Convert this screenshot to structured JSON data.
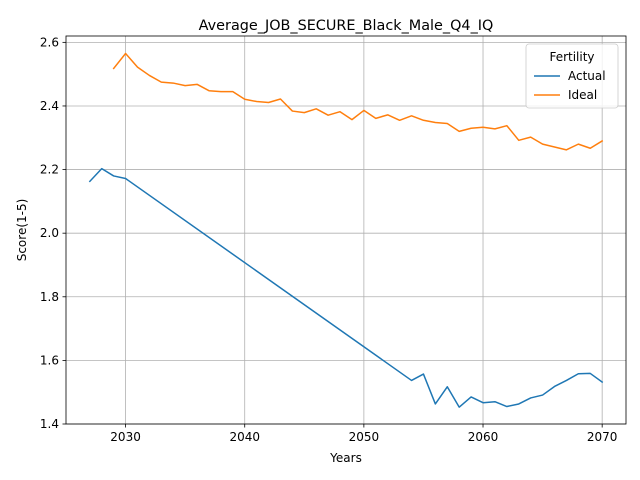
{
  "chart_data": {
    "type": "line",
    "title": "Average_JOB_SECURE_Black_Male_Q4_IQ",
    "xlabel": "Years",
    "ylabel": "Score(1-5)",
    "xlim": [
      2025,
      2072
    ],
    "ylim": [
      1.4,
      2.62
    ],
    "xticks": [
      2030,
      2040,
      2050,
      2060,
      2070
    ],
    "yticks": [
      1.4,
      1.6,
      1.8,
      2.0,
      2.2,
      2.4,
      2.6
    ],
    "grid": true,
    "legend": {
      "title": "Fertility",
      "location": "top-right"
    },
    "series": [
      {
        "name": "Actual",
        "color": "#1f77b4",
        "points": [
          [
            2027,
            2.163
          ],
          [
            2028,
            2.203
          ],
          [
            2029,
            2.18
          ],
          [
            2030,
            2.172
          ],
          [
            2054,
            1.537
          ],
          [
            2055,
            1.557
          ],
          [
            2056,
            1.463
          ],
          [
            2057,
            1.517
          ],
          [
            2058,
            1.453
          ],
          [
            2059,
            1.485
          ],
          [
            2060,
            1.467
          ],
          [
            2061,
            1.47
          ],
          [
            2062,
            1.455
          ],
          [
            2063,
            1.463
          ],
          [
            2064,
            1.482
          ],
          [
            2065,
            1.491
          ],
          [
            2066,
            1.518
          ],
          [
            2067,
            1.537
          ],
          [
            2068,
            1.558
          ],
          [
            2069,
            1.559
          ],
          [
            2070,
            1.532
          ]
        ]
      },
      {
        "name": "Ideal",
        "color": "#ff7f0e",
        "points": [
          [
            2029,
            2.518
          ],
          [
            2030,
            2.565
          ],
          [
            2031,
            2.522
          ],
          [
            2032,
            2.496
          ],
          [
            2033,
            2.475
          ],
          [
            2034,
            2.472
          ],
          [
            2035,
            2.464
          ],
          [
            2036,
            2.468
          ],
          [
            2037,
            2.448
          ],
          [
            2038,
            2.445
          ],
          [
            2039,
            2.445
          ],
          [
            2040,
            2.421
          ],
          [
            2041,
            2.414
          ],
          [
            2042,
            2.411
          ],
          [
            2043,
            2.422
          ],
          [
            2044,
            2.384
          ],
          [
            2045,
            2.379
          ],
          [
            2046,
            2.391
          ],
          [
            2047,
            2.371
          ],
          [
            2048,
            2.382
          ],
          [
            2049,
            2.357
          ],
          [
            2050,
            2.386
          ],
          [
            2051,
            2.361
          ],
          [
            2052,
            2.372
          ],
          [
            2053,
            2.355
          ],
          [
            2054,
            2.369
          ],
          [
            2055,
            2.355
          ],
          [
            2056,
            2.348
          ],
          [
            2057,
            2.345
          ],
          [
            2058,
            2.32
          ],
          [
            2059,
            2.33
          ],
          [
            2060,
            2.333
          ],
          [
            2061,
            2.328
          ],
          [
            2062,
            2.338
          ],
          [
            2063,
            2.292
          ],
          [
            2064,
            2.302
          ],
          [
            2065,
            2.28
          ],
          [
            2066,
            2.271
          ],
          [
            2067,
            2.262
          ],
          [
            2068,
            2.28
          ],
          [
            2069,
            2.267
          ],
          [
            2070,
            2.29
          ]
        ]
      }
    ]
  }
}
